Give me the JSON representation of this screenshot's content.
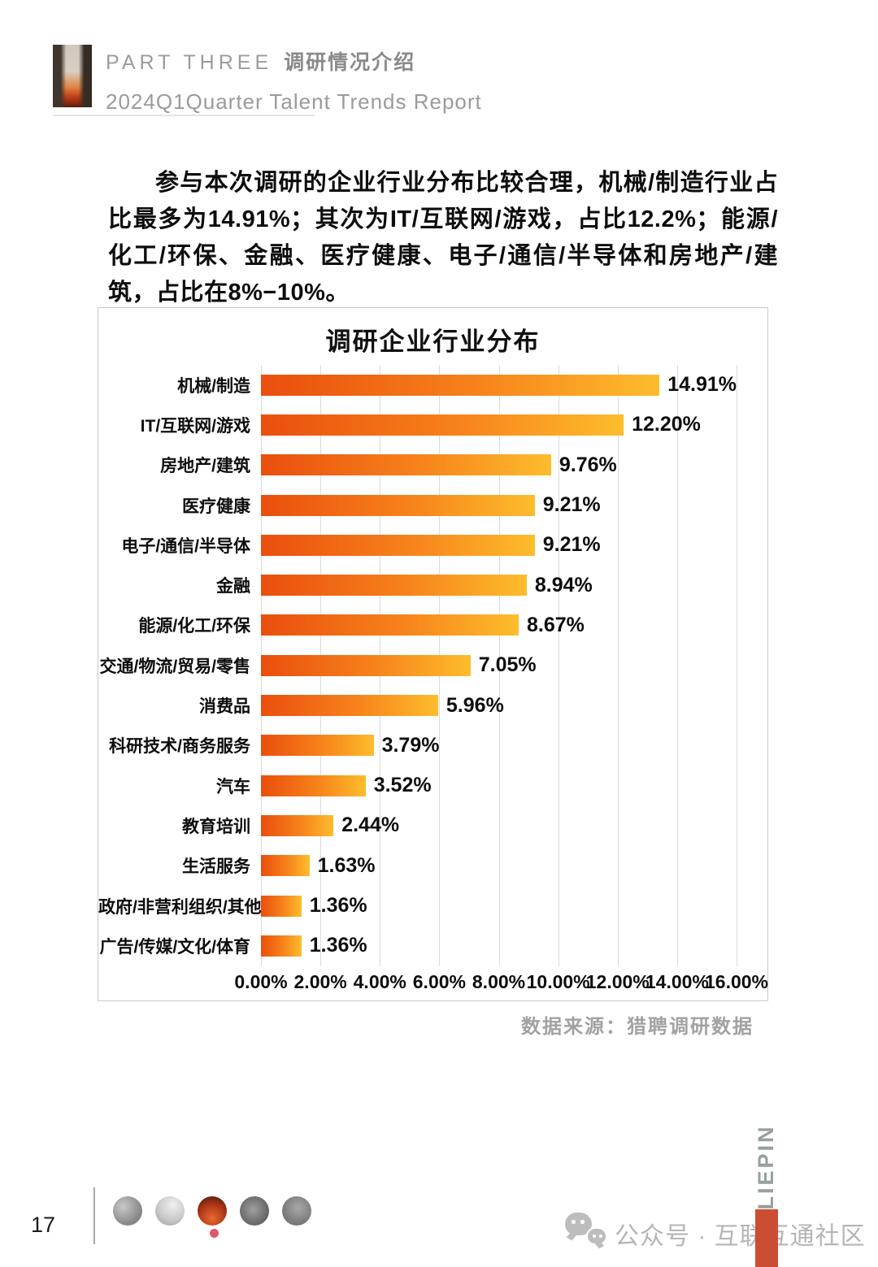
{
  "header": {
    "part_label": "PART THREE",
    "part_title": "调研情况介绍",
    "subtitle": "2024Q1Quarter Talent Trends Report"
  },
  "intro": {
    "text": "参与本次调研的企业行业分布比较合理，机械/制造行业占比最多为14.91%；其次为IT/互联网/游戏，占比12.2%；能源/化工/环保、金融、医疗健康、电子/通信/半导体和房地产/建筑，占比在8%−10%。"
  },
  "chart_data": {
    "type": "bar",
    "orientation": "horizontal",
    "title": "调研企业行业分布",
    "categories": [
      "机械/制造",
      "IT/互联网/游戏",
      "房地产/建筑",
      "医疗健康",
      "电子/通信/半导体",
      "金融",
      "能源/化工/环保",
      "交通/物流/贸易/零售",
      "消费品",
      "科研技术/商务服务",
      "汽车",
      "教育培训",
      "生活服务",
      "政府/非营利组织/其他",
      "广告/传媒/文化/体育"
    ],
    "values": [
      14.91,
      12.2,
      9.76,
      9.21,
      9.21,
      8.94,
      8.67,
      7.05,
      5.96,
      3.79,
      3.52,
      2.44,
      1.63,
      1.36,
      1.36
    ],
    "value_labels": [
      "14.91%",
      "12.20%",
      "9.76%",
      "9.21%",
      "9.21%",
      "8.94%",
      "8.67%",
      "7.05%",
      "5.96%",
      "3.79%",
      "3.52%",
      "2.44%",
      "1.63%",
      "1.36%",
      "1.36%"
    ],
    "xticks": [
      "0.00%",
      "2.00%",
      "4.00%",
      "6.00%",
      "8.00%",
      "10.00%",
      "12.00%",
      "14.00%",
      "16.00%"
    ],
    "xlim": [
      0,
      16
    ],
    "grid": true,
    "legend": false,
    "bar_color_start": "#ea4e0d",
    "bar_color_end": "#fdbd2c"
  },
  "source_note": "数据来源：猎聘调研数据",
  "footer": {
    "page_number": "17",
    "wechat_label": "公众号 · 互联互通社区",
    "brand_vertical": "LIEPIN"
  },
  "colors": {
    "grid": "#dadada",
    "chart_border": "#c9c9c9",
    "brand_bar": "#cb4e33",
    "carousel_dot": "#e3556f"
  }
}
